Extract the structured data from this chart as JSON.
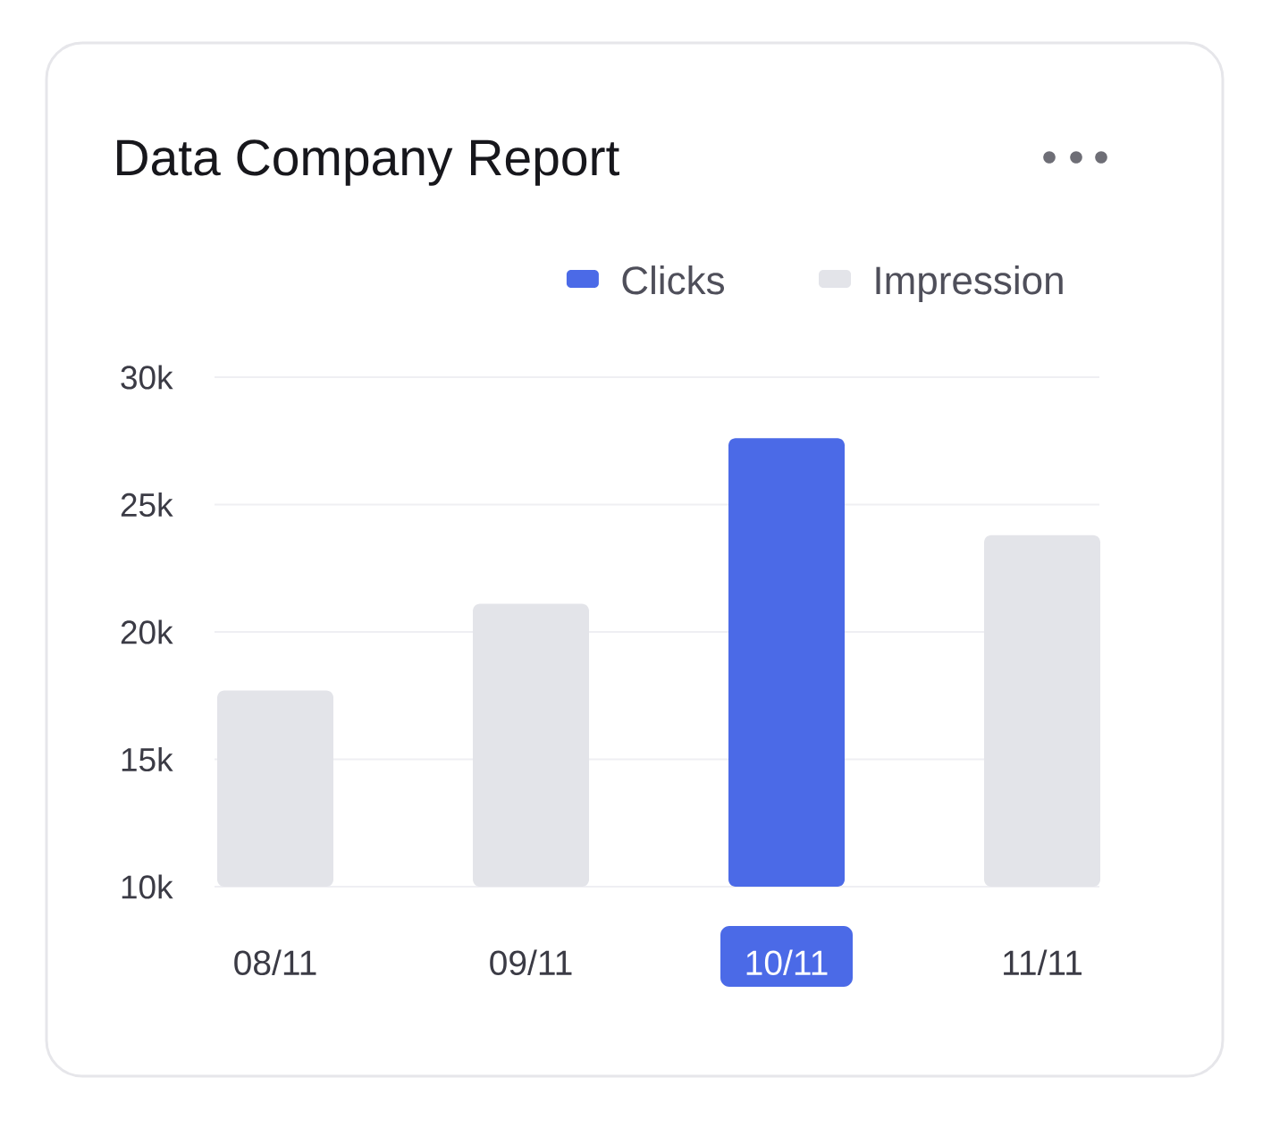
{
  "chart_data": {
    "type": "bar",
    "title": "Data Company Report",
    "categories": [
      "08/11",
      "09/11",
      "10/11",
      "11/11"
    ],
    "series": [
      {
        "name": "Clicks",
        "color": "#4b6ae7",
        "values": [
          null,
          null,
          27600,
          null
        ]
      },
      {
        "name": "Impression",
        "color": "#e3e4e9",
        "values": [
          17700,
          21100,
          null,
          23800
        ]
      }
    ],
    "ylim": [
      10000,
      30000
    ],
    "yticks": [
      {
        "value": 10000,
        "label": "10k"
      },
      {
        "value": 15000,
        "label": "15k"
      },
      {
        "value": 20000,
        "label": "20k"
      },
      {
        "value": 25000,
        "label": "25k"
      },
      {
        "value": 30000,
        "label": "30k"
      }
    ],
    "grid": "y",
    "legend": "top right"
  }
}
